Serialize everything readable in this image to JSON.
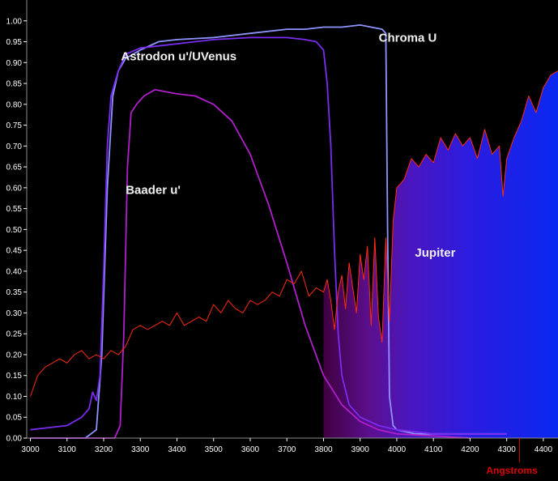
{
  "chart_data": {
    "type": "line",
    "title": "",
    "xlabel": "Angstroms",
    "ylabel": "",
    "xlim": [
      2990,
      4440
    ],
    "ylim": [
      0,
      1.05
    ],
    "grid": false,
    "x_ticks": [
      3000,
      3100,
      3200,
      3300,
      3400,
      3500,
      3600,
      3700,
      3800,
      3900,
      4000,
      4100,
      4200,
      4300,
      4400
    ],
    "y_ticks": [
      0.0,
      0.05,
      0.1,
      0.15,
      0.2,
      0.25,
      0.3,
      0.35,
      0.4,
      0.45,
      0.5,
      0.55,
      0.6,
      0.65,
      0.7,
      0.75,
      0.8,
      0.85,
      0.9,
      0.95,
      1.0
    ],
    "colors": {
      "axis": "#8a8a8a",
      "xlabel": "#e00000",
      "marker": "#cc0000"
    },
    "marker_x": 4335,
    "series": [
      {
        "name": "Chroma U",
        "color": "#8f94ff",
        "x": [
          3000,
          3100,
          3150,
          3180,
          3195,
          3210,
          3225,
          3240,
          3260,
          3300,
          3350,
          3400,
          3500,
          3600,
          3700,
          3750,
          3800,
          3850,
          3900,
          3930,
          3960,
          3970,
          3975,
          3980,
          3990,
          4000,
          4050,
          4100,
          4200,
          4300
        ],
        "y": [
          0.0,
          0.0,
          0.0,
          0.02,
          0.2,
          0.6,
          0.82,
          0.88,
          0.91,
          0.93,
          0.95,
          0.955,
          0.96,
          0.97,
          0.98,
          0.98,
          0.985,
          0.985,
          0.99,
          0.985,
          0.98,
          0.97,
          0.5,
          0.1,
          0.03,
          0.02,
          0.01,
          0.01,
          0.01,
          0.01
        ]
      },
      {
        "name": "Astrodon u'/UVenus",
        "color": "#7a2cf0",
        "x": [
          3000,
          3050,
          3100,
          3140,
          3160,
          3170,
          3180,
          3190,
          3200,
          3210,
          3220,
          3240,
          3260,
          3300,
          3350,
          3400,
          3500,
          3600,
          3700,
          3750,
          3780,
          3800,
          3810,
          3820,
          3830,
          3840,
          3850,
          3870,
          3900,
          3950,
          4000,
          4100,
          4200,
          4300
        ],
        "y": [
          0.02,
          0.025,
          0.03,
          0.05,
          0.07,
          0.11,
          0.09,
          0.15,
          0.4,
          0.7,
          0.82,
          0.88,
          0.92,
          0.935,
          0.94,
          0.945,
          0.955,
          0.96,
          0.96,
          0.955,
          0.95,
          0.93,
          0.85,
          0.7,
          0.45,
          0.25,
          0.15,
          0.08,
          0.05,
          0.03,
          0.02,
          0.01,
          0.01,
          0.01
        ]
      },
      {
        "name": "Baader u'",
        "color": "#b01fcc",
        "x": [
          3000,
          3200,
          3230,
          3245,
          3255,
          3265,
          3275,
          3290,
          3310,
          3340,
          3400,
          3450,
          3500,
          3550,
          3600,
          3650,
          3700,
          3750,
          3800,
          3850,
          3900,
          3950,
          4000,
          4100,
          4200
        ],
        "y": [
          0.0,
          0.0,
          0.0,
          0.03,
          0.25,
          0.65,
          0.78,
          0.8,
          0.82,
          0.835,
          0.825,
          0.82,
          0.8,
          0.76,
          0.68,
          0.56,
          0.42,
          0.27,
          0.15,
          0.08,
          0.04,
          0.02,
          0.01,
          0.005,
          0.0
        ]
      },
      {
        "name": "Jupiter",
        "color": "#ff2a10",
        "x": [
          3000,
          3020,
          3040,
          3060,
          3080,
          3100,
          3120,
          3140,
          3160,
          3180,
          3200,
          3220,
          3240,
          3260,
          3280,
          3300,
          3320,
          3340,
          3360,
          3380,
          3400,
          3420,
          3440,
          3460,
          3480,
          3500,
          3520,
          3540,
          3560,
          3580,
          3600,
          3620,
          3640,
          3660,
          3680,
          3700,
          3720,
          3740,
          3760,
          3780,
          3800,
          3810,
          3820,
          3830,
          3840,
          3850,
          3860,
          3870,
          3880,
          3890,
          3900,
          3910,
          3920,
          3930,
          3940,
          3950,
          3960,
          3970,
          3980,
          3990,
          4000,
          4020,
          4040,
          4060,
          4080,
          4100,
          4120,
          4140,
          4160,
          4180,
          4200,
          4220,
          4240,
          4260,
          4280,
          4290,
          4300,
          4320,
          4340,
          4360,
          4380,
          4400,
          4420,
          4440
        ],
        "y": [
          0.1,
          0.15,
          0.17,
          0.18,
          0.19,
          0.18,
          0.2,
          0.21,
          0.19,
          0.2,
          0.19,
          0.21,
          0.2,
          0.22,
          0.26,
          0.27,
          0.26,
          0.27,
          0.28,
          0.27,
          0.3,
          0.27,
          0.28,
          0.29,
          0.28,
          0.32,
          0.3,
          0.33,
          0.31,
          0.3,
          0.33,
          0.32,
          0.33,
          0.35,
          0.34,
          0.38,
          0.37,
          0.4,
          0.34,
          0.36,
          0.35,
          0.38,
          0.33,
          0.26,
          0.35,
          0.39,
          0.31,
          0.42,
          0.36,
          0.3,
          0.44,
          0.38,
          0.46,
          0.27,
          0.48,
          0.29,
          0.23,
          0.48,
          0.28,
          0.52,
          0.6,
          0.62,
          0.67,
          0.65,
          0.68,
          0.66,
          0.72,
          0.69,
          0.73,
          0.7,
          0.72,
          0.67,
          0.74,
          0.68,
          0.7,
          0.58,
          0.67,
          0.72,
          0.76,
          0.82,
          0.78,
          0.84,
          0.87,
          0.88
        ]
      }
    ],
    "labels": [
      {
        "text": "Chroma U",
        "x": 4030,
        "y": 0.95
      },
      {
        "text": "Astrodon u'/UVenus",
        "x": 3405,
        "y": 0.905
      },
      {
        "text": "Baader u'",
        "x": 3335,
        "y": 0.585
      },
      {
        "text": "Jupiter",
        "x": 4105,
        "y": 0.435
      }
    ],
    "jupiter_fill": {
      "x_start": 3800,
      "gradient": [
        {
          "x": 3800,
          "color": "#400040"
        },
        {
          "x": 3930,
          "color": "#5c1090"
        },
        {
          "x": 4040,
          "color": "#4a16c0"
        },
        {
          "x": 4200,
          "color": "#2a1ce0"
        },
        {
          "x": 4440,
          "color": "#0a28f0"
        }
      ]
    }
  }
}
